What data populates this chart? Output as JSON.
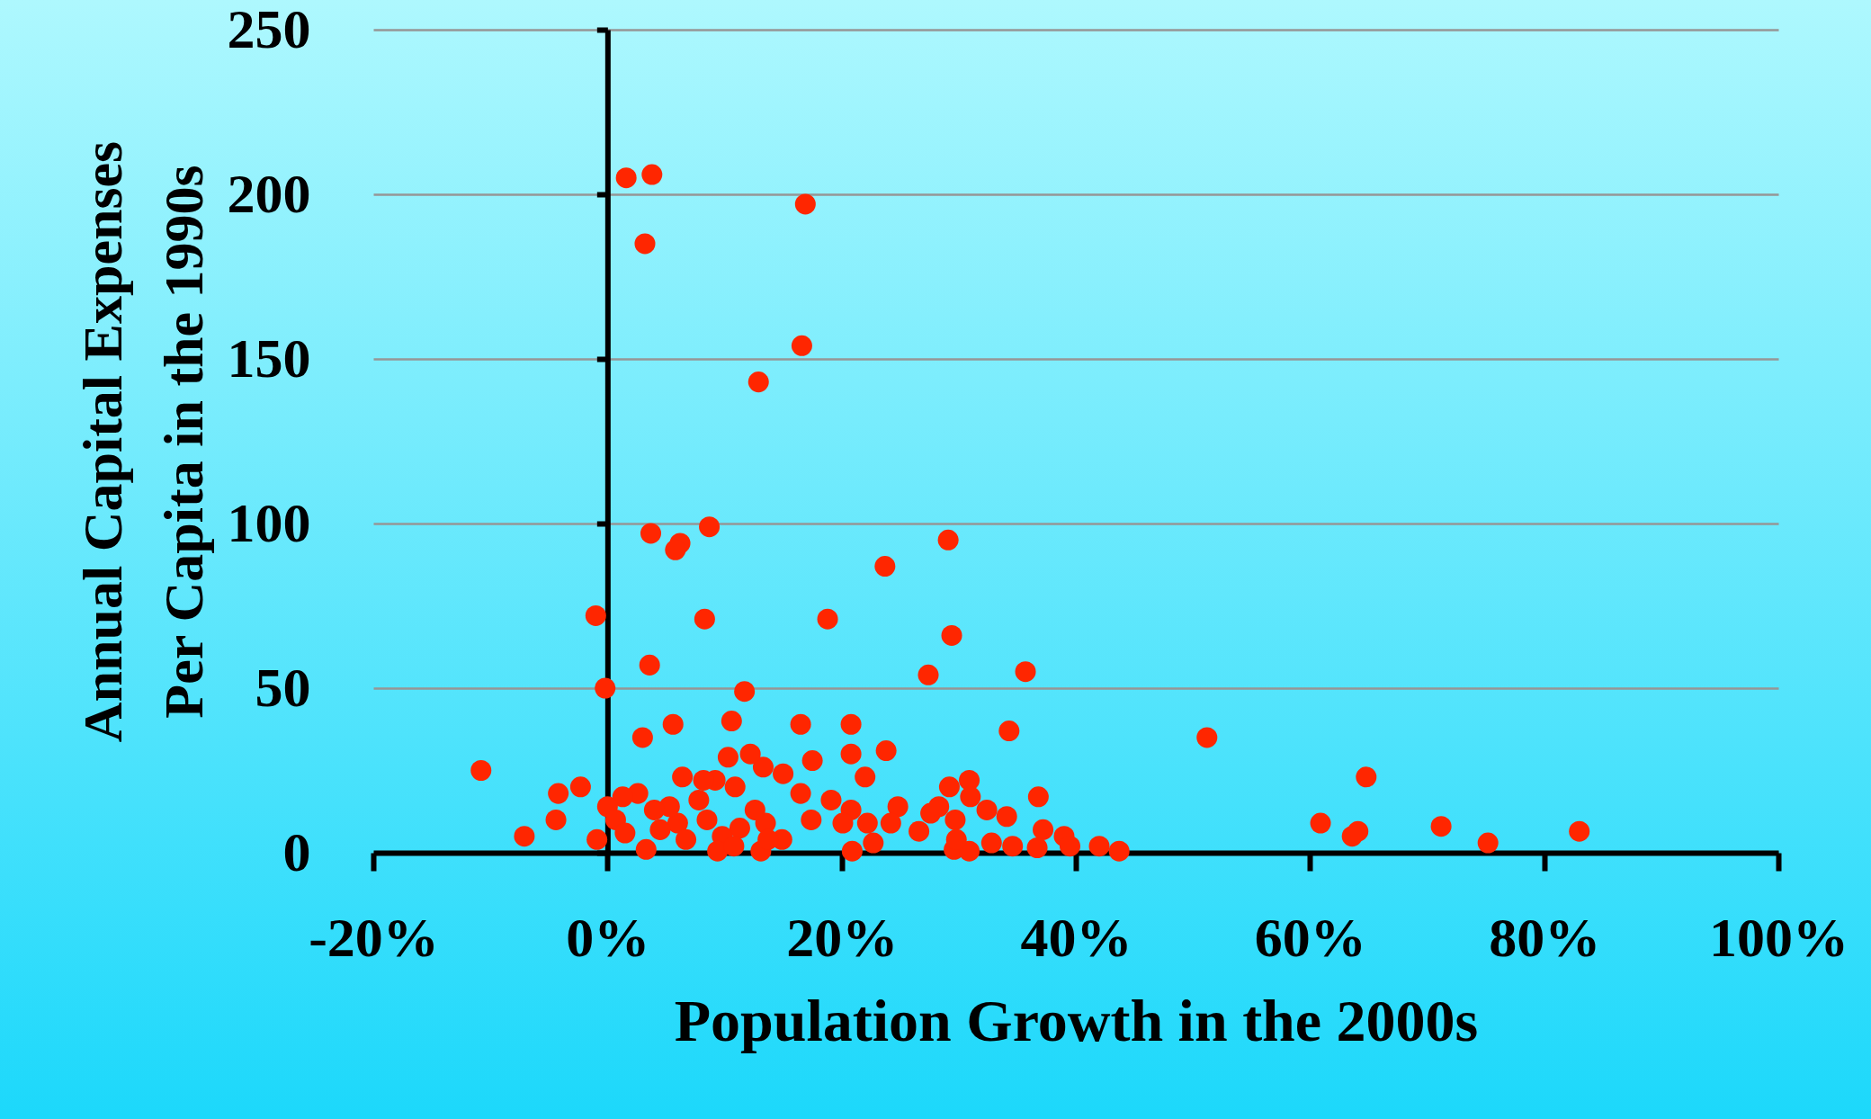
{
  "chart_data": {
    "type": "scatter",
    "xlabel": "Population Growth in the 2000s",
    "ylabel": "Annual Capital Expenses Per Capita in the 1990s",
    "xlim": [
      -20,
      100
    ],
    "ylim": [
      0,
      250
    ],
    "xticks": [
      {
        "value": -20,
        "label": "-20%"
      },
      {
        "value": 0,
        "label": "0%"
      },
      {
        "value": 20,
        "label": "20%"
      },
      {
        "value": 40,
        "label": "40%"
      },
      {
        "value": 60,
        "label": "60%"
      },
      {
        "value": 80,
        "label": "80%"
      },
      {
        "value": 100,
        "label": "100%"
      }
    ],
    "yticks": [
      0,
      50,
      100,
      150,
      200,
      250
    ],
    "grid": "y",
    "marker": "circle",
    "series": [
      {
        "color": "#ff2600",
        "x": [
          -10.8,
          -7.1,
          -4.2,
          -4.4,
          -2.3,
          -1.0,
          -0.2,
          -0.9,
          1.6,
          3.8,
          3.2,
          3.7,
          6.2,
          5.8,
          8.7,
          8.3,
          3.6,
          3.0,
          5.6,
          11.7,
          10.6,
          16.9,
          16.6,
          12.9,
          23.7,
          29.1,
          18.8,
          29.4,
          27.4,
          35.7,
          34.3,
          16.5,
          20.8,
          23.8,
          20.8,
          51.2,
          60.9,
          64.8,
          64.1,
          63.6,
          71.2,
          75.2,
          83,
          36.8,
          37.2,
          39,
          39.5,
          42,
          43.7,
          34.6,
          36.7,
          32.4,
          34.1,
          30.9,
          29.2,
          31,
          29.7,
          29.6,
          30.9,
          29.8,
          32.8,
          27.6,
          26.6,
          28.3,
          24.8,
          24.2,
          22.7,
          22.2,
          22,
          20.8,
          20.9,
          20.1,
          19.1,
          17.5,
          16.5,
          15.0,
          17.4,
          14.9,
          13.5,
          13.1,
          13.3,
          12.2,
          10.3,
          10.9,
          12.6,
          11.3,
          9.8,
          9.4,
          9.2,
          8.2,
          7.8,
          8.5,
          6.4,
          6.0,
          5.3,
          4.0,
          3.3,
          2.6,
          1.3,
          0,
          0.7,
          1.5,
          4.5,
          6.7,
          13.7,
          10.8
        ],
        "values": [
          25,
          5,
          18,
          10,
          20,
          72,
          50,
          4,
          205,
          206,
          185,
          97,
          94,
          92,
          99,
          71,
          57,
          35,
          39,
          49,
          40,
          197,
          154,
          143,
          87,
          95,
          71,
          66,
          54,
          55,
          37,
          39,
          39,
          31,
          30,
          35,
          9,
          23,
          6.5,
          5,
          8,
          3,
          6.5,
          17,
          7,
          5,
          2,
          2,
          0.5,
          2,
          1.5,
          13,
          11,
          22,
          20,
          17,
          10,
          1,
          0.5,
          4,
          3,
          12,
          6.5,
          14,
          14,
          9,
          3,
          9,
          23,
          13,
          0.5,
          9,
          16,
          28,
          18,
          24,
          10,
          4,
          9,
          0.5,
          26,
          30,
          29,
          20,
          13,
          7.5,
          5,
          0.5,
          22,
          22,
          16,
          10,
          23,
          9,
          14,
          13,
          1,
          18,
          17,
          14,
          10,
          6,
          7,
          4,
          4,
          2
        ]
      }
    ]
  }
}
